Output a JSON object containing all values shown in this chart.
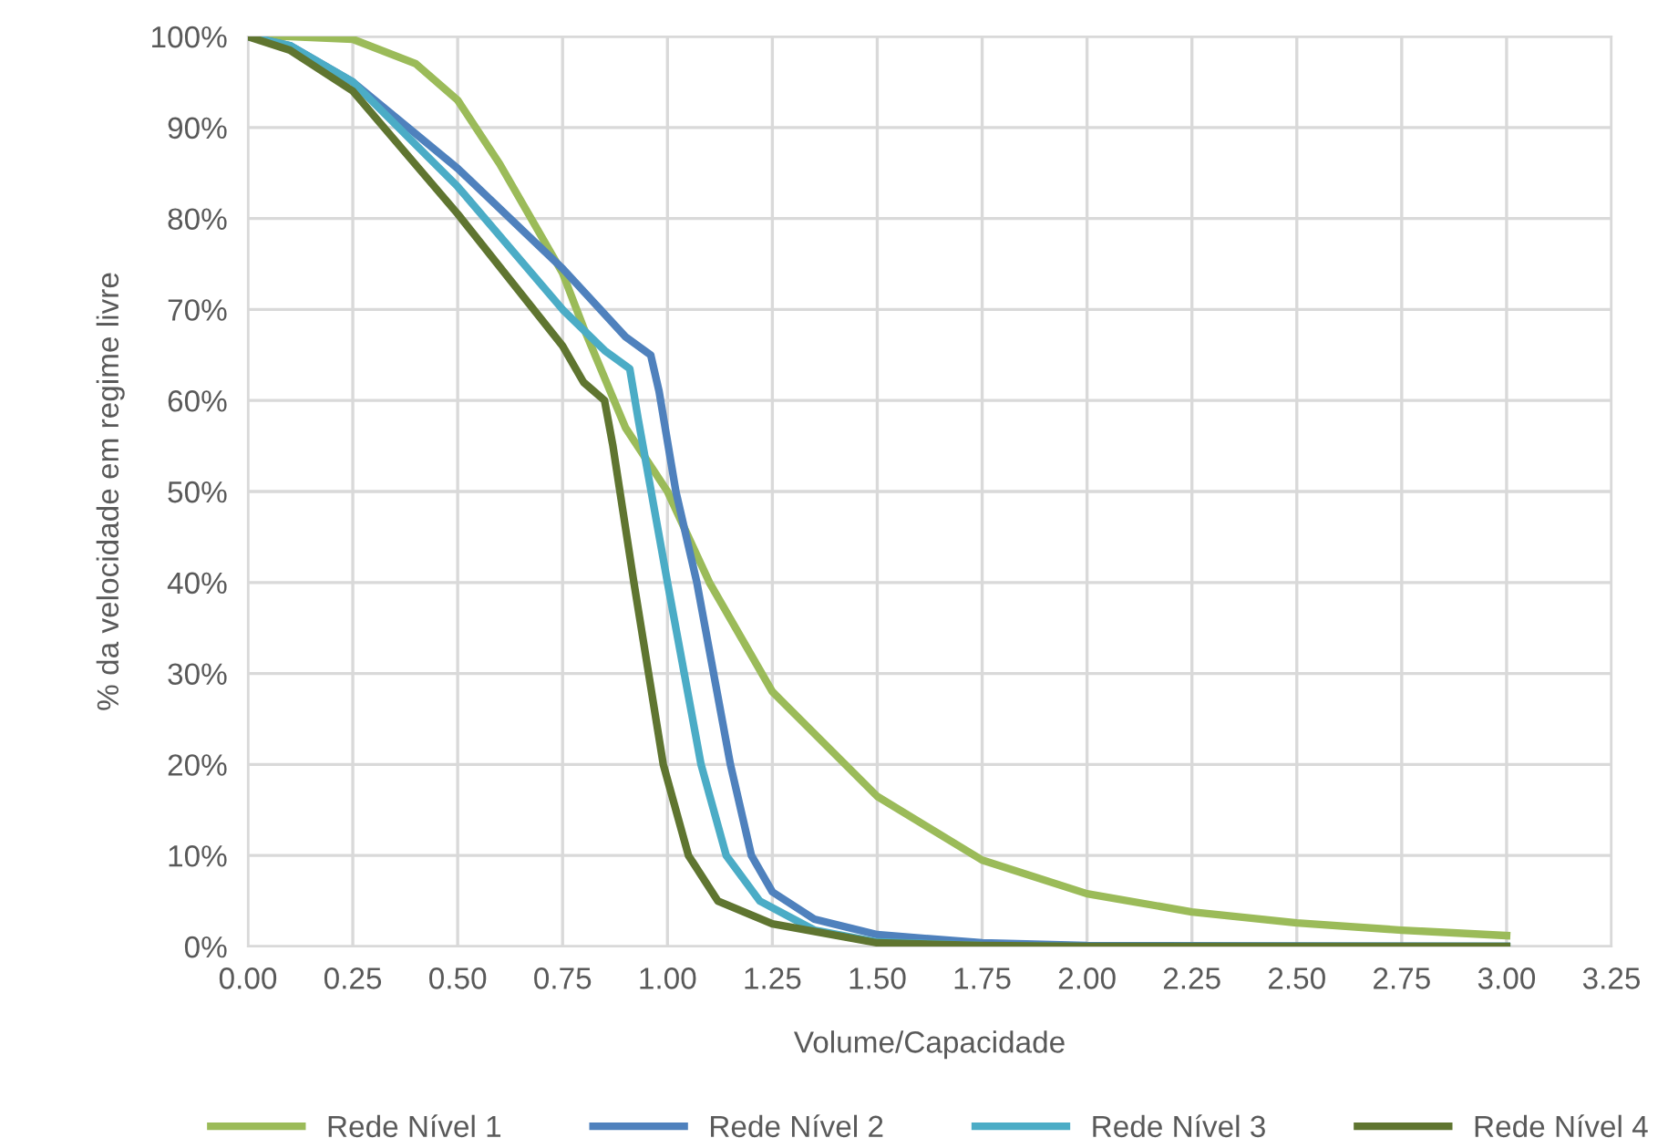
{
  "chart_data": {
    "type": "line",
    "xlabel": "Volume/Capacidade",
    "ylabel": "% da velocidade em regime livre",
    "xlim": [
      0,
      3.25
    ],
    "xticks": [
      {
        "value": 0,
        "label": "0.00"
      },
      {
        "value": 0.25,
        "label": "0.25"
      },
      {
        "value": 0.5,
        "label": "0.50"
      },
      {
        "value": 0.75,
        "label": "0.75"
      },
      {
        "value": 1,
        "label": "1.00"
      },
      {
        "value": 1.25,
        "label": "1.25"
      },
      {
        "value": 1.5,
        "label": "1.50"
      },
      {
        "value": 1.75,
        "label": "1.75"
      },
      {
        "value": 2,
        "label": "2.00"
      },
      {
        "value": 2.25,
        "label": "2.25"
      },
      {
        "value": 2.5,
        "label": "2.50"
      },
      {
        "value": 2.75,
        "label": "2.75"
      },
      {
        "value": 3,
        "label": "3.00"
      },
      {
        "value": 3.25,
        "label": "3.25"
      }
    ],
    "ylim": [
      0,
      100
    ],
    "yticks": [
      {
        "value": 0,
        "label": "0%"
      },
      {
        "value": 10,
        "label": "10%"
      },
      {
        "value": 20,
        "label": "20%"
      },
      {
        "value": 30,
        "label": "30%"
      },
      {
        "value": 40,
        "label": "40%"
      },
      {
        "value": 50,
        "label": "50%"
      },
      {
        "value": 60,
        "label": "60%"
      },
      {
        "value": 70,
        "label": "70%"
      },
      {
        "value": 80,
        "label": "80%"
      },
      {
        "value": 90,
        "label": "90%"
      },
      {
        "value": 100,
        "label": "100%"
      }
    ],
    "grid": true,
    "legend": "bottom",
    "marker": "none",
    "line_style": "solid",
    "series": [
      {
        "name": "Rede Nível 1",
        "color": "#9bbb59",
        "x": [
          0,
          0.1,
          0.25,
          0.4,
          0.5,
          0.6,
          0.7,
          0.75,
          0.8,
          0.9,
          1.0,
          1.1,
          1.25,
          1.5,
          1.75,
          2.0,
          2.25,
          2.5,
          2.75,
          3.0
        ],
        "values": [
          100,
          100,
          99.7,
          97,
          93,
          86,
          78,
          74,
          68,
          57,
          50,
          40,
          28,
          16.5,
          9.5,
          5.8,
          3.8,
          2.6,
          1.8,
          1.2
        ]
      },
      {
        "name": "Rede Nível 2",
        "color": "#4f81bd",
        "x": [
          0,
          0.1,
          0.25,
          0.5,
          0.75,
          0.9,
          0.96,
          0.98,
          1.02,
          1.07,
          1.15,
          1.2,
          1.25,
          1.35,
          1.5,
          1.75,
          2.0,
          3.0
        ],
        "values": [
          100,
          99,
          95,
          85.5,
          74.5,
          67,
          65,
          61,
          50,
          40,
          20,
          10,
          6,
          3,
          1.3,
          0.4,
          0.1,
          0
        ]
      },
      {
        "name": "Rede Nível 3",
        "color": "#4bacc6",
        "x": [
          0,
          0.1,
          0.25,
          0.5,
          0.75,
          0.85,
          0.91,
          0.93,
          1.0,
          1.08,
          1.14,
          1.22,
          1.35,
          1.5,
          1.75,
          2.0,
          3.0
        ],
        "values": [
          100,
          99,
          95,
          83.5,
          70,
          65.5,
          63.5,
          58,
          40,
          20,
          10,
          5,
          1.8,
          0.5,
          0.1,
          0,
          0
        ]
      },
      {
        "name": "Rede Nível 4",
        "color": "#5f7530",
        "x": [
          0,
          0.1,
          0.25,
          0.5,
          0.75,
          0.8,
          0.85,
          0.87,
          0.92,
          0.99,
          1.05,
          1.12,
          1.25,
          1.5,
          1.75,
          2.0,
          3.0
        ],
        "values": [
          100,
          98.5,
          94,
          80.5,
          66,
          62,
          60,
          55,
          40,
          20,
          10,
          5,
          2.5,
          0.4,
          0.1,
          0,
          0
        ]
      }
    ]
  }
}
